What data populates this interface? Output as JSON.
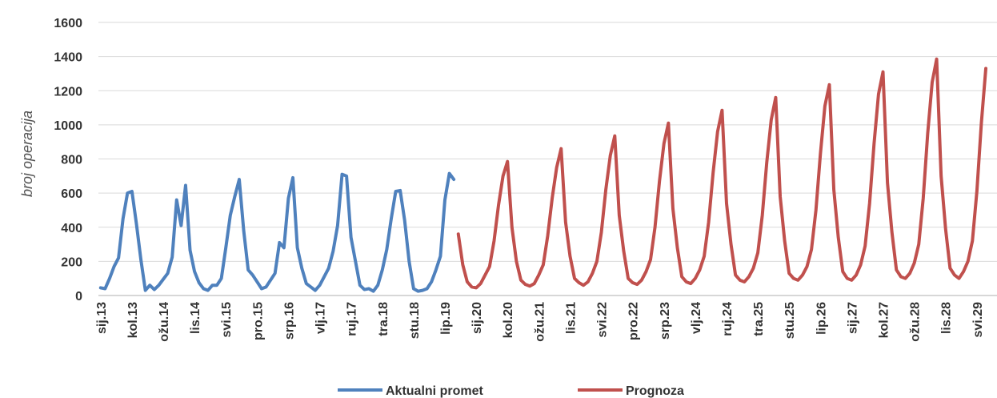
{
  "chart_data": {
    "type": "line",
    "ylabel": "broj operacija",
    "ylim": [
      0,
      1600
    ],
    "yticks": [
      0,
      200,
      400,
      600,
      800,
      1000,
      1200,
      1400,
      1600
    ],
    "x_tick_labels": [
      "sij.13",
      "kol.13",
      "ožu.14",
      "lis.14",
      "svi.15",
      "pro.15",
      "srp.16",
      "vlj.17",
      "ruj.17",
      "tra.18",
      "stu.18",
      "lip.19",
      "sij.20",
      "kol.20",
      "ožu.21",
      "lis.21",
      "svi.22",
      "pro.22",
      "srp.23",
      "vlj.24",
      "ruj.24",
      "tra.25",
      "stu.25",
      "lip.26",
      "sij.27",
      "kol.27",
      "ožu.28",
      "lis.28",
      "svi.29"
    ],
    "x_start": "2013-01",
    "x_tick_step_months": 7,
    "grid": true,
    "legend_position": "bottom",
    "series": [
      {
        "name": "Aktualni promet",
        "color": "#4F81BD",
        "start": "2013-01",
        "values": [
          45,
          40,
          100,
          170,
          220,
          450,
          600,
          610,
          420,
          210,
          30,
          60,
          35,
          60,
          95,
          130,
          225,
          560,
          410,
          645,
          265,
          140,
          75,
          40,
          30,
          60,
          60,
          100,
          280,
          470,
          580,
          680,
          380,
          150,
          120,
          80,
          40,
          50,
          90,
          130,
          310,
          280,
          570,
          690,
          280,
          160,
          70,
          50,
          30,
          60,
          110,
          160,
          260,
          410,
          710,
          700,
          340,
          200,
          60,
          35,
          40,
          25,
          60,
          150,
          270,
          450,
          610,
          615,
          440,
          200,
          40,
          25,
          30,
          40,
          80,
          150,
          230,
          560,
          715,
          680
        ]
      },
      {
        "name": "Prognoza",
        "color": "#C0504D",
        "start": "2019-09",
        "values": [
          360,
          180,
          80,
          50,
          45,
          70,
          120,
          170,
          320,
          530,
          700,
          785,
          400,
          200,
          90,
          65,
          55,
          70,
          120,
          180,
          350,
          570,
          750,
          860,
          430,
          230,
          100,
          75,
          60,
          80,
          130,
          200,
          370,
          620,
          820,
          935,
          470,
          260,
          100,
          75,
          65,
          90,
          140,
          210,
          400,
          670,
          890,
          1010,
          510,
          280,
          110,
          80,
          70,
          100,
          150,
          230,
          430,
          720,
          960,
          1085,
          540,
          300,
          120,
          90,
          80,
          110,
          160,
          250,
          470,
          780,
          1030,
          1160,
          580,
          320,
          130,
          100,
          90,
          120,
          170,
          270,
          500,
          830,
          1110,
          1235,
          620,
          340,
          140,
          100,
          90,
          120,
          180,
          290,
          540,
          890,
          1180,
          1310,
          660,
          370,
          150,
          110,
          100,
          130,
          190,
          300,
          570,
          950,
          1250,
          1385,
          700,
          390,
          160,
          120,
          100,
          140,
          200,
          320,
          610,
          1010,
          1330
        ]
      }
    ]
  }
}
